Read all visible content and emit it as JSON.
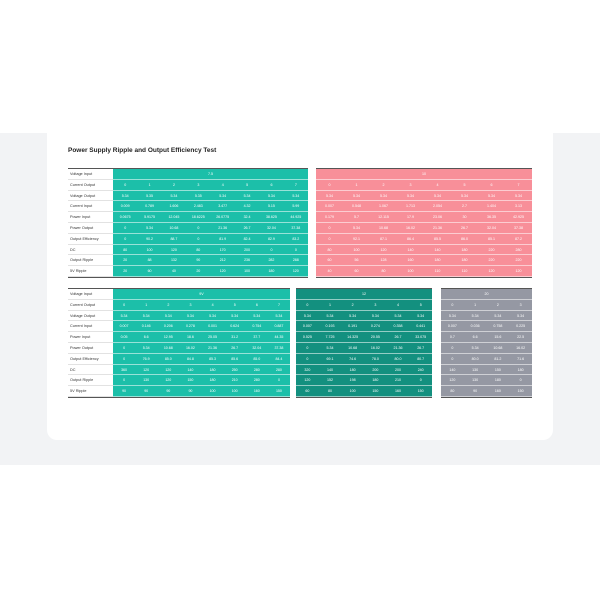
{
  "title": "Power Supply Ripple and Output Efficiency Test",
  "row_labels": [
    "Voltage Input",
    "Current Output",
    "Voltage Output",
    "Current Input",
    "Power Input",
    "Power Output",
    "Output Efficiency",
    "DC",
    "Output Ripple",
    "5V Ripple"
  ],
  "colors": {
    "teal": "#1cbfa9",
    "pink": "#f88f99",
    "dark_teal": "#13907f",
    "grey": "#9598a3"
  },
  "tables": [
    {
      "groups": [
        {
          "voltage": "7.5",
          "color": "#1cbfa9",
          "rows": [
            [
              "0",
              "1",
              "2",
              "3",
              "4",
              "5",
              "6",
              "7"
            ],
            [
              "5.34",
              "5.35",
              "5.34",
              "5.35",
              "5.34",
              "5.34",
              "5.34",
              "5.34"
            ],
            [
              "0.009",
              "0.789",
              "1.606",
              "2.483",
              "3.477",
              "4.32",
              "5.15",
              "5.99"
            ],
            [
              "0.0675",
              "5.9175",
              "12.045",
              "18.6225",
              "26.0775",
              "32.4",
              "38.625",
              "44.925"
            ],
            [
              "0",
              "5.34",
              "10.68",
              "0",
              "21.36",
              "26.7",
              "32.04",
              "37.38"
            ],
            [
              "0",
              "90.2",
              "88.7",
              "0",
              "81.9",
              "82.4",
              "82.9",
              "83.2"
            ],
            [
              "80",
              "100",
              "120",
              "80",
              "170",
              "200",
              "0",
              "0"
            ],
            [
              "20",
              "88",
              "132",
              "90",
              "212",
              "236",
              "282",
              "288"
            ],
            [
              "20",
              "60",
              "40",
              "20",
              "120",
              "100",
              "180",
              "120"
            ]
          ]
        },
        {
          "voltage": "10",
          "color": "#f88f99",
          "rows": [
            [
              "0",
              "1",
              "2",
              "3",
              "4",
              "5",
              "6",
              "7"
            ],
            [
              "5.34",
              "5.34",
              "5.34",
              "5.34",
              "5.34",
              "5.34",
              "5.34",
              "5.34"
            ],
            [
              "0.007",
              "0.548",
              "1.067",
              "1.713",
              "2.054",
              "2.7",
              "1.404",
              "3.13"
            ],
            [
              "0.179",
              "5.7",
              "12.115",
              "17.9",
              "23.06",
              "30",
              "36.35",
              "42.925"
            ],
            [
              "0",
              "5.34",
              "10.68",
              "16.02",
              "21.36",
              "26.7",
              "32.04",
              "37.38"
            ],
            [
              "0",
              "92.1",
              "87.1",
              "86.4",
              "85.5",
              "86.0",
              "85.1",
              "87.2"
            ],
            [
              "80",
              "100",
              "120",
              "140",
              "140",
              "180",
              "220",
              "280"
            ],
            [
              "60",
              "56",
              "128",
              "160",
              "180",
              "180",
              "220",
              "220"
            ],
            [
              "40",
              "60",
              "80",
              "100",
              "110",
              "110",
              "120",
              "120"
            ]
          ]
        }
      ]
    },
    {
      "groups": [
        {
          "voltage": "9V",
          "color": "#1cbfa9",
          "rows": [
            [
              "0",
              "1",
              "2",
              "3",
              "4",
              "5",
              "6",
              "7"
            ],
            [
              "5.34",
              "5.34",
              "5.34",
              "5.34",
              "5.34",
              "5.34",
              "5.34",
              "5.34"
            ],
            [
              "0.007",
              "0.146",
              "0.206",
              "0.278",
              "0.001",
              "0.624",
              "0.754",
              "0.887"
            ],
            [
              "0.05",
              "6.6",
              "12.95",
              "18.6",
              "25.05",
              "31.2",
              "37.7",
              "44.35"
            ],
            [
              "0",
              "5.34",
              "10.68",
              "16.02",
              "21.36",
              "26.7",
              "32.04",
              "37.38"
            ],
            [
              "0",
              "76.9",
              "85.0",
              "84.8",
              "85.3",
              "85.6",
              "85.0",
              "84.4"
            ],
            [
              "360",
              "120",
              "120",
              "140",
              "180",
              "250",
              "280",
              "280"
            ],
            [
              "0",
              "130",
              "120",
              "150",
              "180",
              "210",
              "280",
              "0"
            ],
            [
              "90",
              "90",
              "90",
              "90",
              "100",
              "100",
              "160",
              "150"
            ]
          ]
        },
        {
          "voltage": "12",
          "color": "#13907f",
          "rows": [
            [
              "0",
              "1",
              "2",
              "3",
              "4",
              "5"
            ],
            [
              "5.34",
              "5.34",
              "5.34",
              "5.34",
              "5.34",
              "5.34"
            ],
            [
              "0.007",
              "0.193",
              "0.191",
              "0.274",
              "0.358",
              "0.441"
            ],
            [
              "0.525",
              "7.725",
              "14.325",
              "20.55",
              "26.7",
              "33.075"
            ],
            [
              "0",
              "5.34",
              "10.68",
              "16.02",
              "21.36",
              "26.7"
            ],
            [
              "0",
              "69.1",
              "74.6",
              "78.0",
              "80.0",
              "80.7"
            ],
            [
              "320",
              "140",
              "180",
              "200",
              "200",
              "240"
            ],
            [
              "120",
              "152",
              "198",
              "180",
              "210",
              "0"
            ],
            [
              "60",
              "80",
              "100",
              "150",
              "160",
              "150"
            ]
          ]
        },
        {
          "voltage": "20",
          "color": "#9598a3",
          "rows": [
            [
              "0",
              "1",
              "2",
              "3"
            ],
            [
              "5.34",
              "5.34",
              "5.34",
              "5.34"
            ],
            [
              "0.007",
              "0.036",
              "0.758",
              "0.225"
            ],
            [
              "0.7",
              "6.6",
              "15.6",
              "22.5"
            ],
            [
              "0",
              "5.34",
              "10.68",
              "16.02"
            ],
            [
              "0",
              "80.0",
              "81.2",
              "71.6"
            ],
            [
              "140",
              "130",
              "150",
              "180"
            ],
            [
              "120",
              "130",
              "180",
              "0"
            ],
            [
              "80",
              "90",
              "160",
              "150"
            ]
          ]
        }
      ]
    }
  ]
}
